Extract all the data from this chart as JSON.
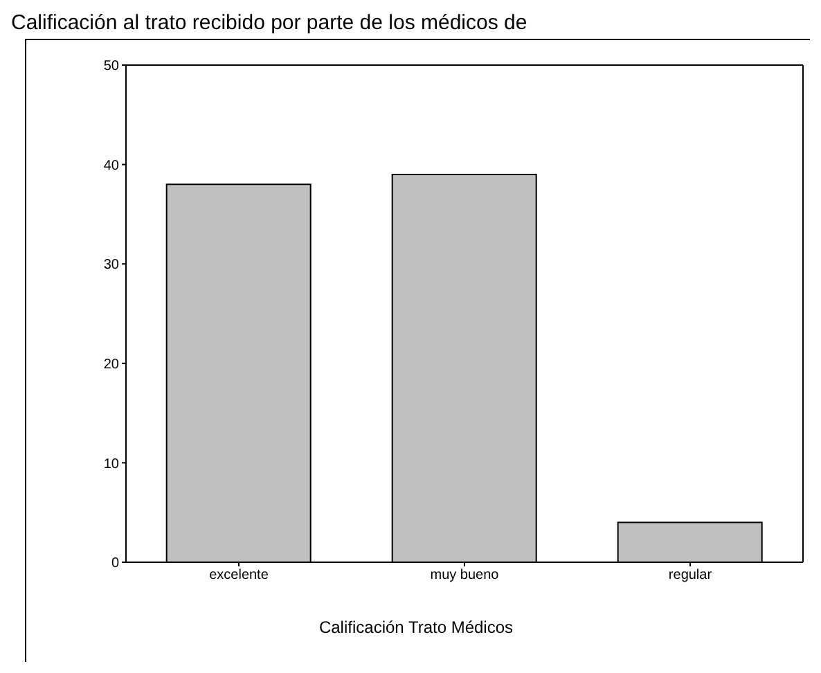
{
  "chart_data": {
    "type": "bar",
    "title": "Calificación al trato recibido por parte de los médicos de",
    "xlabel": "Calificación Trato Médicos",
    "categories": [
      "excelente",
      "muy bueno",
      "regular"
    ],
    "values": [
      38,
      39,
      4
    ],
    "color": "#c0c0c0",
    "ylim": [
      0,
      50
    ],
    "yticks": [
      0,
      10,
      20,
      30,
      40,
      50
    ],
    "grid": false
  }
}
